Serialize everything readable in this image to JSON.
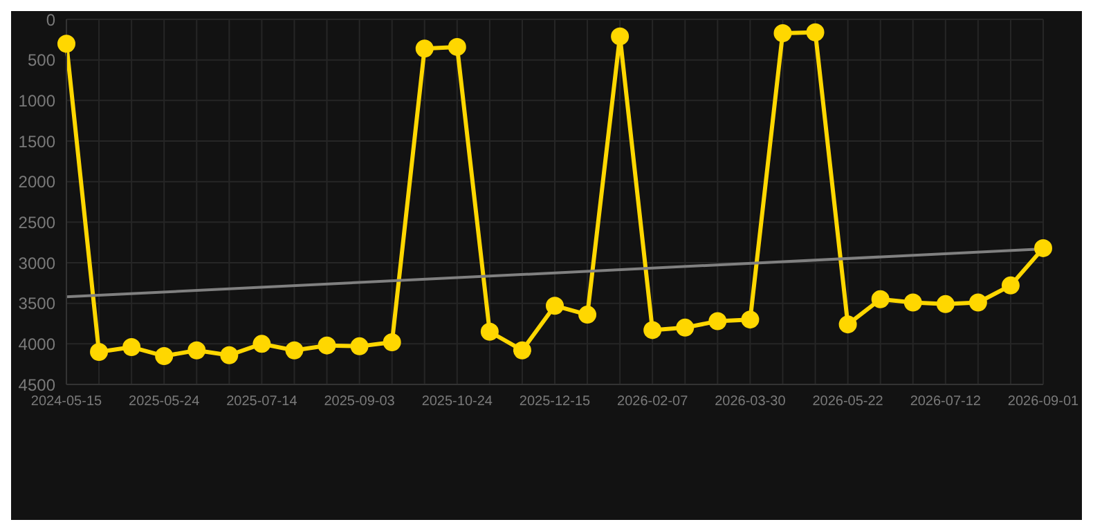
{
  "chart_data": {
    "type": "line",
    "categories": [
      "2024-05-15",
      null,
      null,
      "2025-05-24",
      null,
      null,
      "2025-07-14",
      null,
      null,
      "2025-09-03",
      null,
      null,
      "2025-10-24",
      null,
      null,
      "2025-12-15",
      null,
      null,
      "2026-02-07",
      null,
      null,
      "2026-03-30",
      null,
      null,
      "2026-05-22",
      null,
      null,
      "2026-07-12",
      null,
      null,
      "2026-09-01"
    ],
    "series": [
      {
        "color": "#ffd700",
        "marker": "circle",
        "values": [
          300,
          4100,
          4040,
          4150,
          4080,
          4140,
          4000,
          4080,
          4020,
          4030,
          3980,
          360,
          340,
          3850,
          4080,
          3530,
          3640,
          210,
          3830,
          3800,
          3720,
          3700,
          170,
          160,
          3760,
          3450,
          3490,
          3510,
          3490,
          3280,
          2820
        ]
      },
      {
        "color": "#808080",
        "marker": "none",
        "values": [
          3420,
          null,
          null,
          null,
          null,
          null,
          null,
          null,
          null,
          null,
          null,
          null,
          null,
          null,
          null,
          null,
          null,
          null,
          null,
          null,
          null,
          null,
          null,
          null,
          null,
          null,
          null,
          null,
          null,
          null,
          2830
        ]
      }
    ],
    "ylim": [
      4500,
      0
    ],
    "yticks": [
      0,
      500,
      1000,
      1500,
      2000,
      2500,
      3000,
      3500,
      4000,
      4500
    ],
    "grid": true,
    "legend": false
  }
}
